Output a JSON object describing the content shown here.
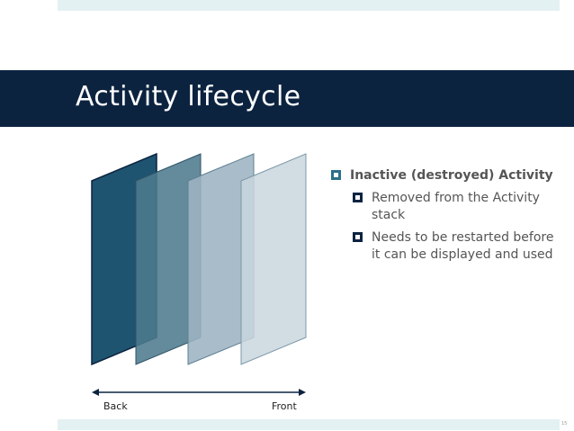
{
  "slide": {
    "title": "Activity lifecycle",
    "page_number": "15"
  },
  "diagram": {
    "back_label": "Back",
    "front_label": "Front",
    "layer_colors": [
      "#1e5470",
      "#4d7b8e",
      "#9db3c1",
      "#c9d6de"
    ]
  },
  "bullets": {
    "main": "Inactive (destroyed) Activity",
    "sub": [
      "Removed from the Activity stack",
      "Needs to be restarted before it can be displayed and used"
    ]
  },
  "colors": {
    "title_bar": "#0c2340",
    "accent_band": "#e4f1f3",
    "bullet_accent": "#2a6f8a"
  }
}
